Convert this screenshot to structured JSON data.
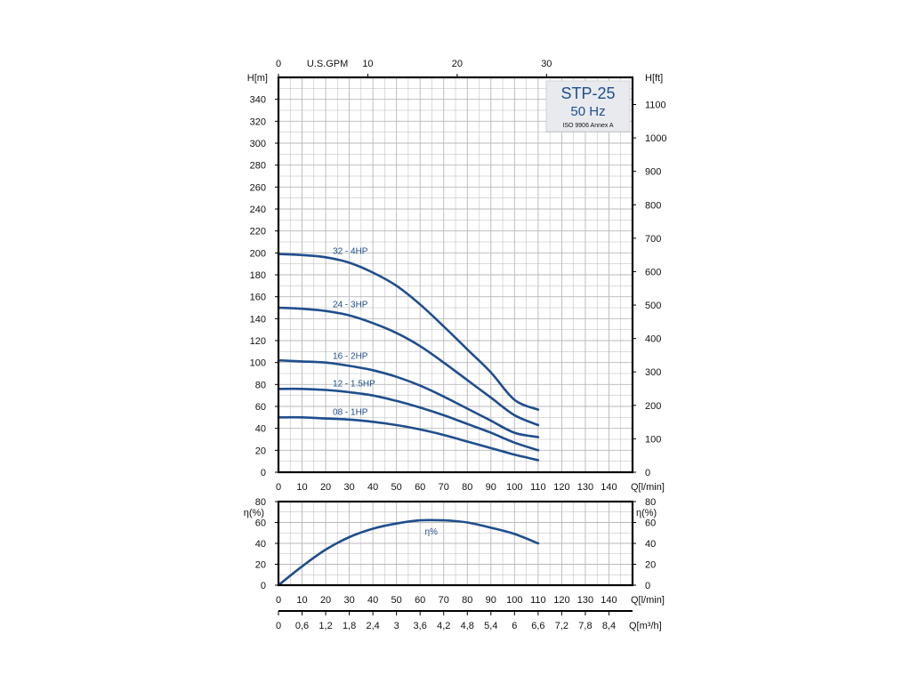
{
  "chart_data": [
    {
      "type": "line",
      "title": "",
      "legend_box": {
        "title": "STP-25",
        "subtitle": "50 Hz",
        "note": "ISO 9906 Annex A",
        "placement": "top-right"
      },
      "x": [
        0,
        10,
        20,
        30,
        40,
        50,
        60,
        70,
        80,
        90,
        100,
        110
      ],
      "xlabel": "Q[l/min]",
      "x_ticks": [
        "0",
        "10",
        "20",
        "30",
        "40",
        "50",
        "60",
        "70",
        "80",
        "90",
        "100",
        "110",
        "120",
        "130",
        "140"
      ],
      "xlim": [
        0,
        150
      ],
      "ylabel_left": "H[m]",
      "ylim_left": [
        0,
        360
      ],
      "y_ticks_left": [
        "0",
        "20",
        "40",
        "60",
        "80",
        "100",
        "120",
        "140",
        "160",
        "180",
        "200",
        "220",
        "240",
        "260",
        "280",
        "300",
        "320",
        "340"
      ],
      "ylabel_right": "H[ft]",
      "y_ticks_right": [
        "0",
        "100",
        "200",
        "300",
        "400",
        "500",
        "600",
        "700",
        "800",
        "900",
        "1000",
        "1100"
      ],
      "top_axis_label": "U.S.GPM",
      "top_axis_ticks": [
        "0",
        "10",
        "20",
        "30"
      ],
      "grid": true,
      "series": [
        {
          "name": "32 - 4HP",
          "values": [
            199,
            198,
            196,
            191,
            182,
            170,
            153,
            133,
            112,
            91,
            66,
            57
          ]
        },
        {
          "name": "24 - 3HP",
          "values": [
            150,
            149,
            147,
            143,
            136,
            127,
            115,
            100,
            84,
            68,
            52,
            43
          ]
        },
        {
          "name": "16 - 2HP",
          "values": [
            102,
            101,
            100,
            97,
            93,
            87,
            79,
            69,
            58,
            47,
            36,
            32
          ]
        },
        {
          "name": "12 - 1.5HP",
          "values": [
            76,
            76,
            75,
            73,
            70,
            65,
            59,
            52,
            44,
            36,
            27,
            20
          ]
        },
        {
          "name": "08 - 1HP",
          "values": [
            50,
            50,
            49,
            48,
            46,
            43,
            39,
            34,
            28,
            22,
            16,
            11
          ]
        }
      ]
    },
    {
      "type": "line",
      "title": "",
      "x": [
        0,
        10,
        20,
        30,
        40,
        50,
        60,
        70,
        80,
        90,
        100,
        110
      ],
      "xlabel": "Q[l/min]",
      "x_ticks": [
        "0",
        "10",
        "20",
        "30",
        "40",
        "50",
        "60",
        "70",
        "80",
        "90",
        "100",
        "110",
        "120",
        "130",
        "140"
      ],
      "xlim": [
        0,
        150
      ],
      "ylabel": "η(%)",
      "ylim": [
        0,
        80
      ],
      "y_ticks": [
        "0",
        "20",
        "40",
        "60",
        "80"
      ],
      "grid": true,
      "series": [
        {
          "name": "η%",
          "values": [
            0,
            18,
            34,
            46,
            54,
            59,
            62,
            62,
            60,
            55,
            49,
            40
          ]
        }
      ],
      "secondary_x_label": "Q[m³/h]",
      "secondary_x_ticks": [
        "0",
        "0,6",
        "1,2",
        "1,8",
        "2,4",
        "3",
        "3,6",
        "4,2",
        "4,8",
        "5,4",
        "6",
        "6,6",
        "7,2",
        "7,8",
        "8,4"
      ]
    }
  ],
  "colors": {
    "curve": "#1f4e8c",
    "grid": "#b8b8b8",
    "frame": "#000000",
    "legend_bg": "#e8eaee"
  }
}
